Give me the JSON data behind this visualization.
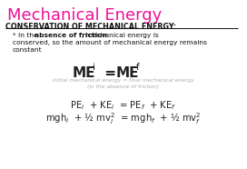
{
  "title": "Mechanical Energy",
  "title_color": "#ee1199",
  "bg_color": "#ffffff",
  "conservation_heading": "CONSERVATION OF MECHANICAL ENERGY:",
  "text_color": "#111111",
  "gray_color": "#aaaaaa",
  "formula_color": "#222222",
  "sub_caption1": "Initial mechanical energy = final mechanical energy",
  "sub_caption2": "(in the absence of friction)"
}
